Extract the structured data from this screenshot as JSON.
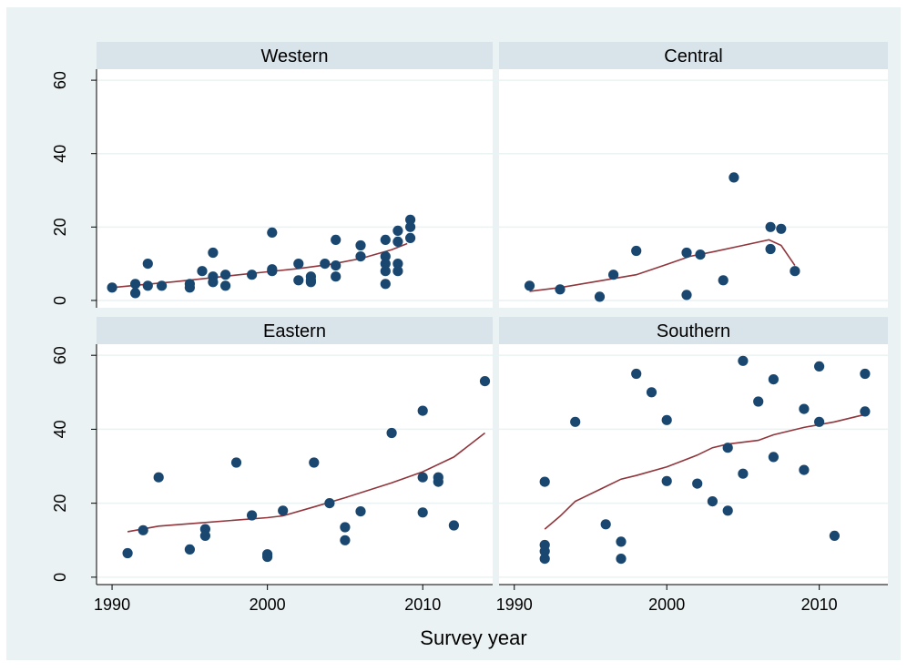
{
  "chart_data": {
    "type": "scatter",
    "layout": "2x2 facets",
    "xlabel": "Survey year",
    "ylabel": "",
    "xlim": [
      1989,
      2014.5
    ],
    "ylim": [
      -2,
      63
    ],
    "x_ticks": [
      "1990",
      "2000",
      "2010"
    ],
    "y_ticks": [
      "0",
      "20",
      "40",
      "60"
    ],
    "grid": true,
    "colors": {
      "outer_background": "#eaf2f3",
      "plot_background": "#ffffff",
      "panel_header": "#d8e4ea",
      "marker": "#1a476f",
      "fit_line": "#90353b",
      "gridline": "#eaf2f3"
    },
    "panels": [
      {
        "title": "Western",
        "points": [
          [
            1990,
            3.5
          ],
          [
            1991.5,
            2
          ],
          [
            1991.5,
            4.5
          ],
          [
            1992.3,
            4
          ],
          [
            1992.3,
            10
          ],
          [
            1993.2,
            4
          ],
          [
            1995,
            3.5
          ],
          [
            1995,
            4.5
          ],
          [
            1995.8,
            8
          ],
          [
            1996.5,
            13
          ],
          [
            1996.5,
            5
          ],
          [
            1996.5,
            6.5
          ],
          [
            1997.3,
            4
          ],
          [
            1997.3,
            7
          ],
          [
            1999,
            7
          ],
          [
            2000.3,
            18.5
          ],
          [
            2000.3,
            8
          ],
          [
            2000.3,
            8.5
          ],
          [
            2002,
            10
          ],
          [
            2002,
            5.5
          ],
          [
            2002.8,
            5
          ],
          [
            2002.8,
            6.5
          ],
          [
            2002.8,
            5.5
          ],
          [
            2003.7,
            10
          ],
          [
            2004.4,
            16.5
          ],
          [
            2004.4,
            9.5
          ],
          [
            2004.4,
            6.5
          ],
          [
            2006,
            15
          ],
          [
            2006,
            12
          ],
          [
            2007.6,
            16.5
          ],
          [
            2007.6,
            12
          ],
          [
            2007.6,
            10
          ],
          [
            2007.6,
            8
          ],
          [
            2007.6,
            4.5
          ],
          [
            2008.4,
            19
          ],
          [
            2008.4,
            16
          ],
          [
            2008.4,
            10
          ],
          [
            2008.4,
            8
          ],
          [
            2009.2,
            22
          ],
          [
            2009.2,
            20
          ],
          [
            2009.2,
            17
          ]
        ],
        "fit": [
          [
            1990,
            3.5
          ],
          [
            1992,
            4.3
          ],
          [
            1994,
            5.1
          ],
          [
            1996,
            6
          ],
          [
            1998,
            6.9
          ],
          [
            2000,
            7.8
          ],
          [
            2002,
            8.7
          ],
          [
            2004,
            9.8
          ],
          [
            2006,
            11.4
          ],
          [
            2008,
            13.8
          ],
          [
            2009,
            15.5
          ]
        ]
      },
      {
        "title": "Central",
        "points": [
          [
            1991,
            4
          ],
          [
            1993,
            3
          ],
          [
            1995.6,
            1
          ],
          [
            1996.5,
            7
          ],
          [
            1998,
            13.5
          ],
          [
            2001.3,
            1.5
          ],
          [
            2001.3,
            13
          ],
          [
            2002.2,
            12.5
          ],
          [
            2003.7,
            5.5
          ],
          [
            2004.4,
            33.5
          ],
          [
            2006.8,
            20
          ],
          [
            2006.8,
            14
          ],
          [
            2007.5,
            19.5
          ],
          [
            2008.4,
            8
          ]
        ],
        "fit": [
          [
            1991,
            2.5
          ],
          [
            1993,
            3.5
          ],
          [
            1995,
            4.9
          ],
          [
            1998,
            7
          ],
          [
            2000,
            9.8
          ],
          [
            2001.5,
            12
          ],
          [
            2003,
            13.2
          ],
          [
            2005,
            15
          ],
          [
            2006.7,
            16.5
          ],
          [
            2007.5,
            15
          ],
          [
            2008.4,
            9.5
          ]
        ]
      },
      {
        "title": "Eastern",
        "points": [
          [
            1991,
            6.5
          ],
          [
            1992,
            12.7
          ],
          [
            1993,
            27
          ],
          [
            1995,
            7.5
          ],
          [
            1996,
            13
          ],
          [
            1996,
            11.2
          ],
          [
            1998,
            31
          ],
          [
            1999,
            16.7
          ],
          [
            2000,
            6.2
          ],
          [
            2000,
            5.5
          ],
          [
            2001,
            18
          ],
          [
            2003,
            31
          ],
          [
            2004,
            20
          ],
          [
            2005,
            13.5
          ],
          [
            2005,
            10
          ],
          [
            2006,
            17.8
          ],
          [
            2008,
            39
          ],
          [
            2010,
            45
          ],
          [
            2010,
            27
          ],
          [
            2010,
            17.5
          ],
          [
            2011,
            27
          ],
          [
            2011,
            25.8
          ],
          [
            2012,
            14
          ],
          [
            2014,
            53
          ]
        ],
        "fit": [
          [
            1991,
            12.3
          ],
          [
            1993,
            13.8
          ],
          [
            1996,
            14.8
          ],
          [
            2000,
            16.1
          ],
          [
            2001,
            16.6
          ],
          [
            2003,
            19
          ],
          [
            2005,
            21.5
          ],
          [
            2008,
            25.5
          ],
          [
            2010,
            28.5
          ],
          [
            2012,
            32.5
          ],
          [
            2014,
            39
          ]
        ]
      },
      {
        "title": "Southern",
        "points": [
          [
            1992,
            25.8
          ],
          [
            1992,
            8.7
          ],
          [
            1992,
            7
          ],
          [
            1992,
            5
          ],
          [
            1994,
            42
          ],
          [
            1996,
            14.3
          ],
          [
            1997,
            9.6
          ],
          [
            1997,
            5
          ],
          [
            1998,
            55
          ],
          [
            1999,
            50
          ],
          [
            2000,
            42.5
          ],
          [
            2000,
            26
          ],
          [
            2002,
            25.3
          ],
          [
            2003,
            20.5
          ],
          [
            2004,
            35
          ],
          [
            2004,
            18
          ],
          [
            2005,
            58.5
          ],
          [
            2005,
            28
          ],
          [
            2006,
            47.5
          ],
          [
            2007,
            53.5
          ],
          [
            2007,
            32.5
          ],
          [
            2009,
            45.5
          ],
          [
            2009,
            29
          ],
          [
            2010,
            57
          ],
          [
            2010,
            42
          ],
          [
            2011,
            11.2
          ],
          [
            2013,
            55
          ],
          [
            2013,
            44.8
          ]
        ],
        "fit": [
          [
            1992,
            13
          ],
          [
            1993,
            16.5
          ],
          [
            1994,
            20.5
          ],
          [
            1996,
            24.5
          ],
          [
            1997,
            26.5
          ],
          [
            1998,
            27.5
          ],
          [
            2000,
            29.8
          ],
          [
            2002,
            33
          ],
          [
            2003,
            35
          ],
          [
            2004,
            36
          ],
          [
            2006,
            37
          ],
          [
            2007,
            38.5
          ],
          [
            2009,
            40.5
          ],
          [
            2011,
            42
          ],
          [
            2013,
            44
          ]
        ]
      }
    ]
  }
}
